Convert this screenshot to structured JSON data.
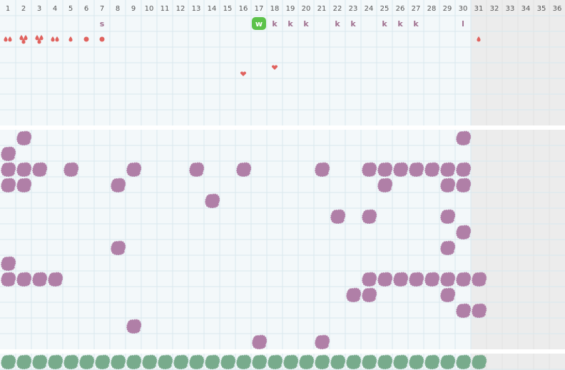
{
  "header": {
    "days": [
      "1",
      "2",
      "3",
      "4",
      "5",
      "6",
      "7",
      "8",
      "9",
      "10",
      "11",
      "12",
      "13",
      "14",
      "15",
      "16",
      "17",
      "18",
      "19",
      "20",
      "21",
      "22",
      "23",
      "24",
      "25",
      "26",
      "27",
      "28",
      "29",
      "30",
      "31",
      "32",
      "33",
      "34",
      "35",
      "36"
    ]
  },
  "first_row_marks": [
    "s",
    "w",
    "k",
    "k",
    "k",
    "k",
    "k",
    "k",
    "k",
    "k",
    "l"
  ]
}
